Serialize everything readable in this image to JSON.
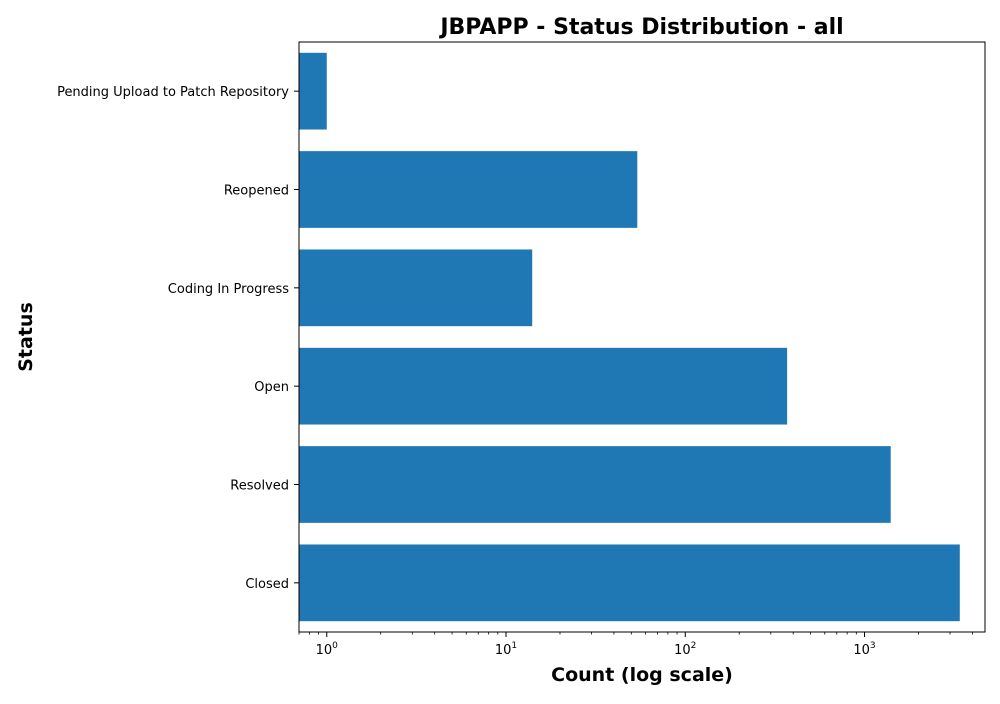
{
  "chart_data": {
    "type": "bar",
    "orientation": "horizontal",
    "title": "JBPAPP - Status Distribution - all",
    "xlabel": "Count (log scale)",
    "ylabel": "Status",
    "xscale": "log",
    "xlim": [
      0.7,
      4700
    ],
    "categories": [
      "Closed",
      "Resolved",
      "Open",
      "Coding In Progress",
      "Reopened",
      "Pending Upload to Patch Repository"
    ],
    "values": [
      3400,
      1400,
      370,
      14,
      54,
      1
    ],
    "x_ticks": [
      {
        "value": 1,
        "base": "10",
        "exp": "0"
      },
      {
        "value": 10,
        "base": "10",
        "exp": "1"
      },
      {
        "value": 100,
        "base": "10",
        "exp": "2"
      },
      {
        "value": 1000,
        "base": "10",
        "exp": "3"
      }
    ],
    "bar_color": "#1f77b4",
    "grid": false,
    "legend": "none"
  }
}
